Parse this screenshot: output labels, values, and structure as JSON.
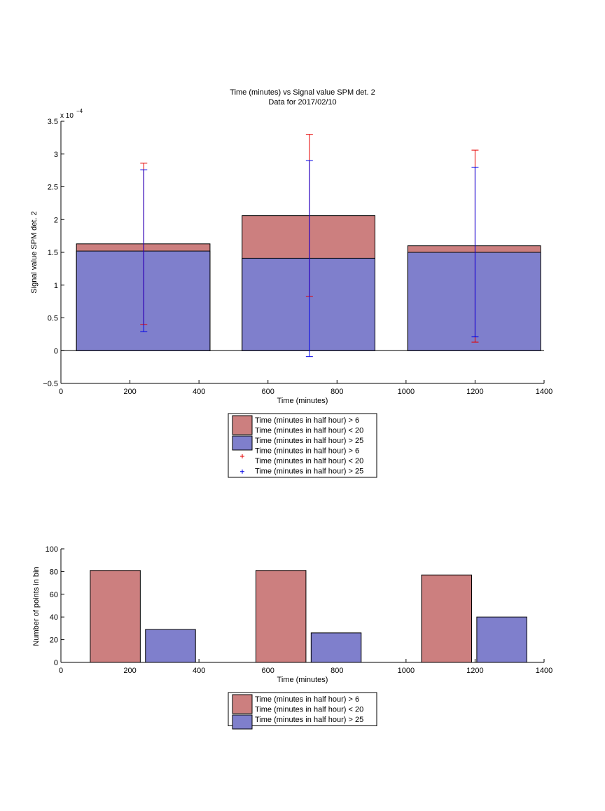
{
  "colors": {
    "red_fill": "#cc7f7f",
    "blue_fill": "#7f7fcc",
    "red_err": "#e60000",
    "blue_err": "#0000e6"
  },
  "chart_data": [
    {
      "type": "bar",
      "title": "Time (minutes) vs Signal value SPM det. 2",
      "subtitle": "Data for 2017/02/10",
      "xlabel": "Time (minutes)",
      "ylabel": "Signal value SPM det. 2",
      "y_exponent_label": "x 10",
      "y_exponent_power": "−4",
      "xlim": [
        0,
        1400
      ],
      "ylim": [
        -0.5,
        3.5
      ],
      "y_scale": 0.0001,
      "xticks": [
        "0",
        "200",
        "400",
        "600",
        "800",
        "1000",
        "1200",
        "1400"
      ],
      "yticks": [
        "−0.5",
        "0",
        "0.5",
        "1",
        "1.5",
        "2",
        "2.5",
        "3",
        "3.5"
      ],
      "bar_x_ranges": [
        [
          45,
          432
        ],
        [
          525,
          910
        ],
        [
          1005,
          1390
        ]
      ],
      "errorbar_x": [
        240,
        720,
        1200
      ],
      "series": [
        {
          "name": "Time (minutes in half hour) > 6\nTime (minutes in half hour) < 20",
          "values": [
            1.63,
            2.06,
            1.6
          ],
          "err_low": [
            0.4,
            0.83,
            0.13
          ],
          "err_high": [
            2.86,
            3.3,
            3.06
          ]
        },
        {
          "name": "Time (minutes in half hour) > 25",
          "values": [
            1.52,
            1.41,
            1.5
          ],
          "err_low": [
            0.29,
            -0.09,
            0.21
          ],
          "err_high": [
            2.76,
            2.9,
            2.8
          ]
        }
      ],
      "legend": [
        {
          "lines": [
            "Time (minutes in half hour) > 6",
            "Time (minutes in half hour) < 20"
          ],
          "kind": "patch",
          "color": "#cc7f7f"
        },
        {
          "lines": [
            "Time (minutes in half hour) > 25"
          ],
          "kind": "patch",
          "color": "#7f7fcc"
        },
        {
          "lines": [
            "Time (minutes in half hour) > 6",
            "Time (minutes in half hour) < 20"
          ],
          "kind": "plus",
          "color": "#e60000"
        },
        {
          "lines": [
            "Time (minutes in half hour) > 25"
          ],
          "kind": "plus",
          "color": "#0000e6"
        }
      ],
      "legend_placement": "below"
    },
    {
      "type": "bar",
      "xlabel": "Time (minutes)",
      "ylabel": "Number of points in bin",
      "xlim": [
        0,
        1400
      ],
      "ylim": [
        0,
        100
      ],
      "xticks": [
        "0",
        "200",
        "400",
        "600",
        "800",
        "1000",
        "1200",
        "1400"
      ],
      "yticks": [
        "0",
        "20",
        "40",
        "60",
        "80",
        "100"
      ],
      "bars": [
        {
          "x0": 85,
          "x1": 230,
          "value": 81,
          "series": 0
        },
        {
          "x0": 245,
          "x1": 390,
          "value": 29,
          "series": 1
        },
        {
          "x0": 565,
          "x1": 710,
          "value": 81,
          "series": 0
        },
        {
          "x0": 725,
          "x1": 870,
          "value": 26,
          "series": 1
        },
        {
          "x0": 1045,
          "x1": 1190,
          "value": 77,
          "series": 0
        },
        {
          "x0": 1205,
          "x1": 1350,
          "value": 40,
          "series": 1
        }
      ],
      "legend": [
        {
          "lines": [
            "Time (minutes in half hour) > 6",
            "Time (minutes in half hour) < 20"
          ],
          "kind": "patch",
          "color": "#cc7f7f"
        },
        {
          "lines": [
            "Time (minutes in half hour) > 25"
          ],
          "kind": "patch",
          "color": "#7f7fcc"
        }
      ],
      "legend_placement": "below"
    }
  ]
}
